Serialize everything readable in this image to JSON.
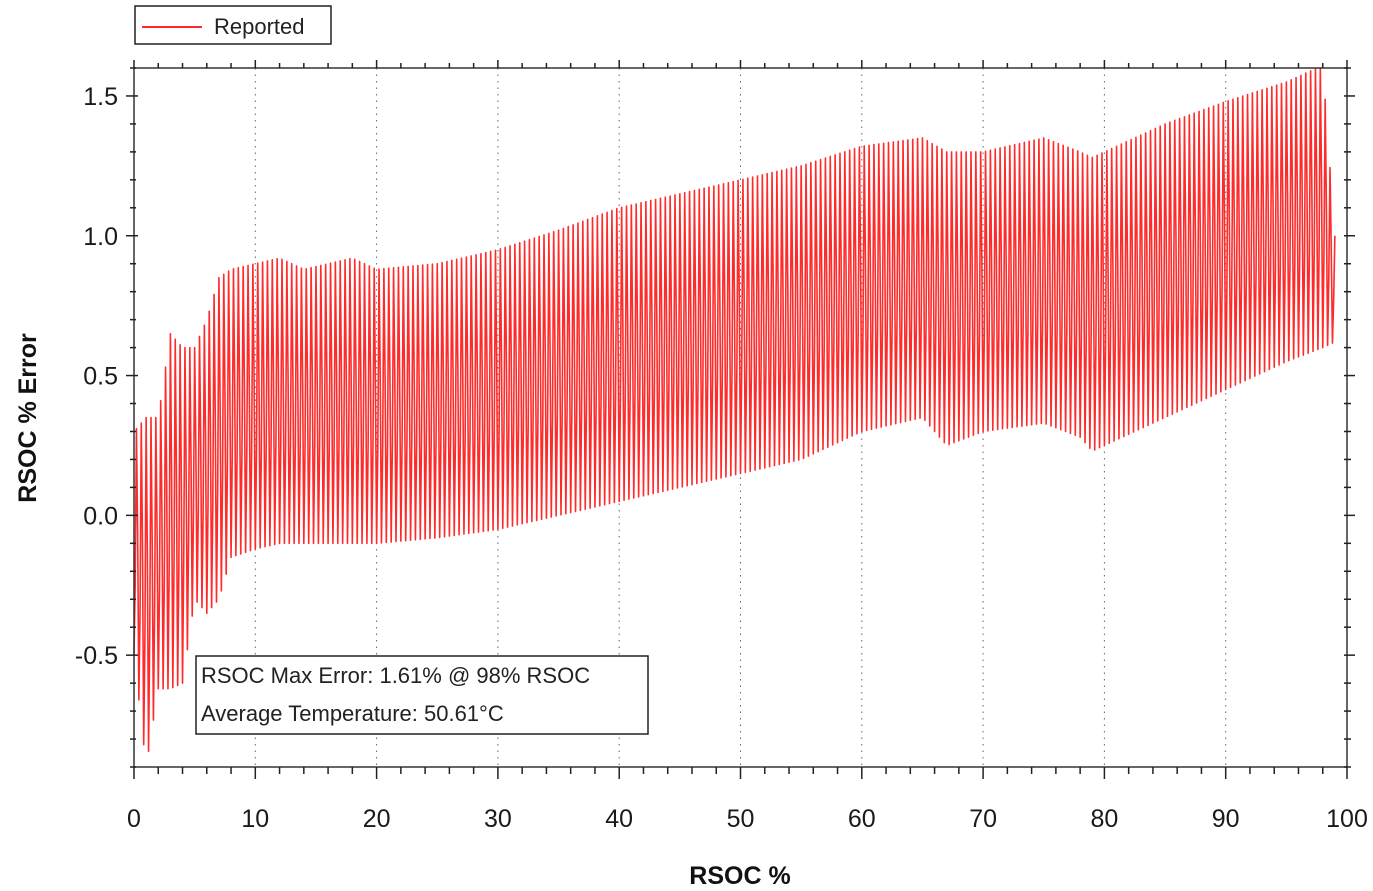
{
  "chart_data": {
    "type": "line",
    "xlabel": "RSOC %",
    "ylabel": "RSOC % Error",
    "xlim": [
      0,
      100
    ],
    "ylim": [
      -0.9,
      1.6
    ],
    "x_ticks": [
      "0",
      "10",
      "20",
      "30",
      "40",
      "50",
      "60",
      "70",
      "80",
      "90",
      "100"
    ],
    "y_ticks": [
      "-0.5",
      "0.0",
      "0.5",
      "1.0",
      "1.5"
    ],
    "grid": "vertical dotted",
    "legend_position": "top-left outside plot",
    "series": [
      {
        "name": "Reported",
        "color": "#ff2a2a",
        "envelope_x": [
          0,
          1,
          2,
          3,
          4,
          5,
          6,
          7,
          8,
          10,
          12,
          14,
          16,
          18,
          20,
          25,
          30,
          35,
          40,
          45,
          50,
          55,
          60,
          65,
          67,
          70,
          75,
          78,
          79,
          80,
          85,
          90,
          95,
          98,
          99
        ],
        "envelope_low": [
          -0.5,
          -0.9,
          -0.62,
          -0.62,
          -0.6,
          -0.3,
          -0.35,
          -0.3,
          -0.15,
          -0.12,
          -0.1,
          -0.1,
          -0.1,
          -0.1,
          -0.1,
          -0.08,
          -0.05,
          0.0,
          0.05,
          0.1,
          0.15,
          0.2,
          0.3,
          0.35,
          0.25,
          0.3,
          0.33,
          0.28,
          0.23,
          0.25,
          0.35,
          0.45,
          0.55,
          0.6,
          0.62
        ],
        "envelope_high": [
          0.3,
          0.35,
          0.35,
          0.65,
          0.6,
          0.6,
          0.7,
          0.85,
          0.88,
          0.9,
          0.92,
          0.88,
          0.9,
          0.92,
          0.88,
          0.9,
          0.95,
          1.02,
          1.1,
          1.15,
          1.2,
          1.25,
          1.32,
          1.35,
          1.3,
          1.3,
          1.35,
          1.3,
          1.28,
          1.3,
          1.4,
          1.48,
          1.55,
          1.61,
          1.0
        ],
        "cycles_per_unit": 2.5
      }
    ]
  },
  "annotation": {
    "line1": "RSOC Max Error: 1.61% @ 98% RSOC",
    "line2": "Average Temperature: 50.61°C"
  }
}
